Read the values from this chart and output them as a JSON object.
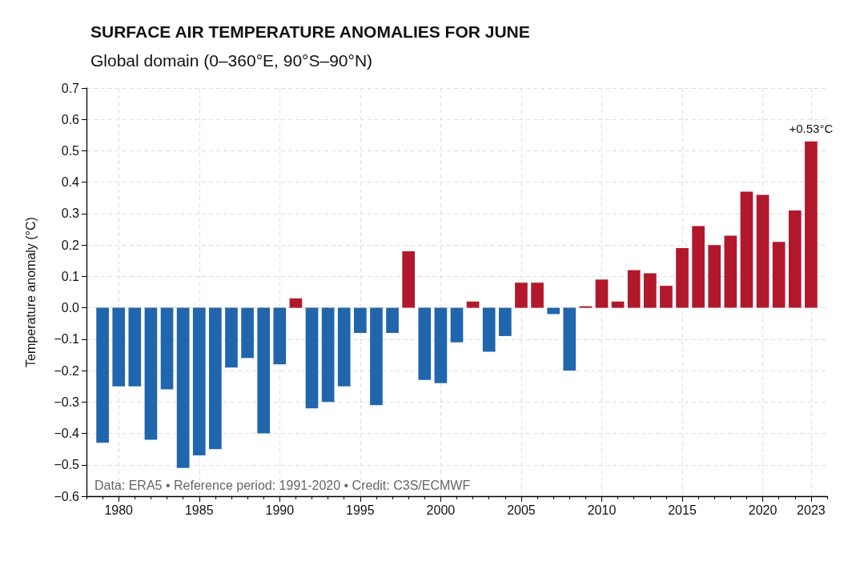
{
  "chart_data": {
    "type": "bar",
    "title": "SURFACE AIR TEMPERATURE ANOMALIES FOR JUNE",
    "subtitle": "Global domain (0–360°E, 90°S–90°N)",
    "ylabel": "Temperature anomaly (°C)",
    "x": [
      1979,
      1980,
      1981,
      1982,
      1983,
      1984,
      1985,
      1986,
      1987,
      1988,
      1989,
      1990,
      1991,
      1992,
      1993,
      1994,
      1995,
      1996,
      1997,
      1998,
      1999,
      2000,
      2001,
      2002,
      2003,
      2004,
      2005,
      2006,
      2007,
      2008,
      2009,
      2010,
      2011,
      2012,
      2013,
      2014,
      2015,
      2016,
      2017,
      2018,
      2019,
      2020,
      2021,
      2022,
      2023
    ],
    "values": [
      -0.43,
      -0.25,
      -0.25,
      -0.42,
      -0.26,
      -0.51,
      -0.47,
      -0.45,
      -0.19,
      -0.16,
      -0.4,
      -0.18,
      0.03,
      -0.32,
      -0.3,
      -0.25,
      -0.08,
      -0.31,
      -0.08,
      0.18,
      -0.23,
      -0.24,
      -0.11,
      0.02,
      -0.14,
      -0.09,
      0.08,
      0.08,
      -0.02,
      -0.2,
      0.005,
      0.09,
      0.02,
      0.12,
      0.11,
      0.07,
      0.19,
      0.26,
      0.2,
      0.23,
      0.37,
      0.36,
      0.21,
      0.31,
      0.53
    ],
    "colors": [
      "#2166ac",
      "#2166ac",
      "#2166ac",
      "#2166ac",
      "#2166ac",
      "#2166ac",
      "#2166ac",
      "#2166ac",
      "#2166ac",
      "#2166ac",
      "#2166ac",
      "#2166ac",
      "#b2182b",
      "#2166ac",
      "#2166ac",
      "#2166ac",
      "#2166ac",
      "#2166ac",
      "#2166ac",
      "#b2182b",
      "#2166ac",
      "#2166ac",
      "#2166ac",
      "#b2182b",
      "#2166ac",
      "#2166ac",
      "#b2182b",
      "#b2182b",
      "#2166ac",
      "#2166ac",
      "#b2182b",
      "#b2182b",
      "#b2182b",
      "#b2182b",
      "#b2182b",
      "#b2182b",
      "#b2182b",
      "#b2182b",
      "#b2182b",
      "#b2182b",
      "#b2182b",
      "#b2182b",
      "#b2182b",
      "#b2182b",
      "#b2182b"
    ],
    "value_labels": [
      null,
      null,
      null,
      null,
      null,
      null,
      null,
      null,
      null,
      null,
      null,
      null,
      null,
      null,
      null,
      null,
      null,
      null,
      null,
      null,
      null,
      null,
      null,
      null,
      null,
      null,
      null,
      null,
      null,
      null,
      null,
      null,
      null,
      null,
      null,
      null,
      null,
      null,
      null,
      null,
      null,
      null,
      null,
      null,
      "+0.53°C"
    ],
    "xlim": [
      1978,
      2024
    ],
    "xticks": [
      {
        "value": 1978,
        "label": null
      },
      {
        "value": 1979,
        "label": null
      },
      1980,
      {
        "value": 1981,
        "label": null
      },
      {
        "value": 1982,
        "label": null
      },
      {
        "value": 1983,
        "label": null
      },
      {
        "value": 1984,
        "label": null
      },
      1985,
      {
        "value": 1986,
        "label": null
      },
      {
        "value": 1987,
        "label": null
      },
      {
        "value": 1988,
        "label": null
      },
      {
        "value": 1989,
        "label": null
      },
      1990,
      {
        "value": 1991,
        "label": null
      },
      {
        "value": 1992,
        "label": null
      },
      {
        "value": 1993,
        "label": null
      },
      {
        "value": 1994,
        "label": null
      },
      1995,
      {
        "value": 1996,
        "label": null
      },
      {
        "value": 1997,
        "label": null
      },
      {
        "value": 1998,
        "label": null
      },
      {
        "value": 1999,
        "label": null
      },
      2000,
      {
        "value": 2001,
        "label": null
      },
      {
        "value": 2002,
        "label": null
      },
      {
        "value": 2003,
        "label": null
      },
      {
        "value": 2004,
        "label": null
      },
      2005,
      {
        "value": 2006,
        "label": null
      },
      {
        "value": 2007,
        "label": null
      },
      {
        "value": 2008,
        "label": null
      },
      {
        "value": 2009,
        "label": null
      },
      2010,
      {
        "value": 2011,
        "label": null
      },
      {
        "value": 2012,
        "label": null
      },
      {
        "value": 2013,
        "label": null
      },
      {
        "value": 2014,
        "label": null
      },
      2015,
      {
        "value": 2016,
        "label": null
      },
      {
        "value": 2017,
        "label": null
      },
      {
        "value": 2018,
        "label": null
      },
      {
        "value": 2019,
        "label": null
      },
      2020,
      {
        "value": 2021,
        "label": null
      },
      {
        "value": 2022,
        "label": null
      },
      2023,
      {
        "value": 2024,
        "label": null
      }
    ],
    "ylim": [
      -0.6,
      0.7
    ],
    "yticks": [
      {
        "value": -0.6,
        "label": "−0.6"
      },
      {
        "value": -0.5,
        "label": "−0.5"
      },
      {
        "value": -0.4,
        "label": "−0.4"
      },
      {
        "value": -0.3,
        "label": "−0.3"
      },
      {
        "value": -0.2,
        "label": "−0.2"
      },
      {
        "value": -0.1,
        "label": "−0.1"
      },
      {
        "value": 0,
        "label": "0.0"
      },
      0.1,
      0.2,
      0.3,
      0.4,
      0.5,
      0.6,
      0.7
    ],
    "grid": true,
    "annotations": [
      "Data: ERA5 • Reference period: 1991-2020 • Credit: C3S/ECMWF"
    ]
  }
}
